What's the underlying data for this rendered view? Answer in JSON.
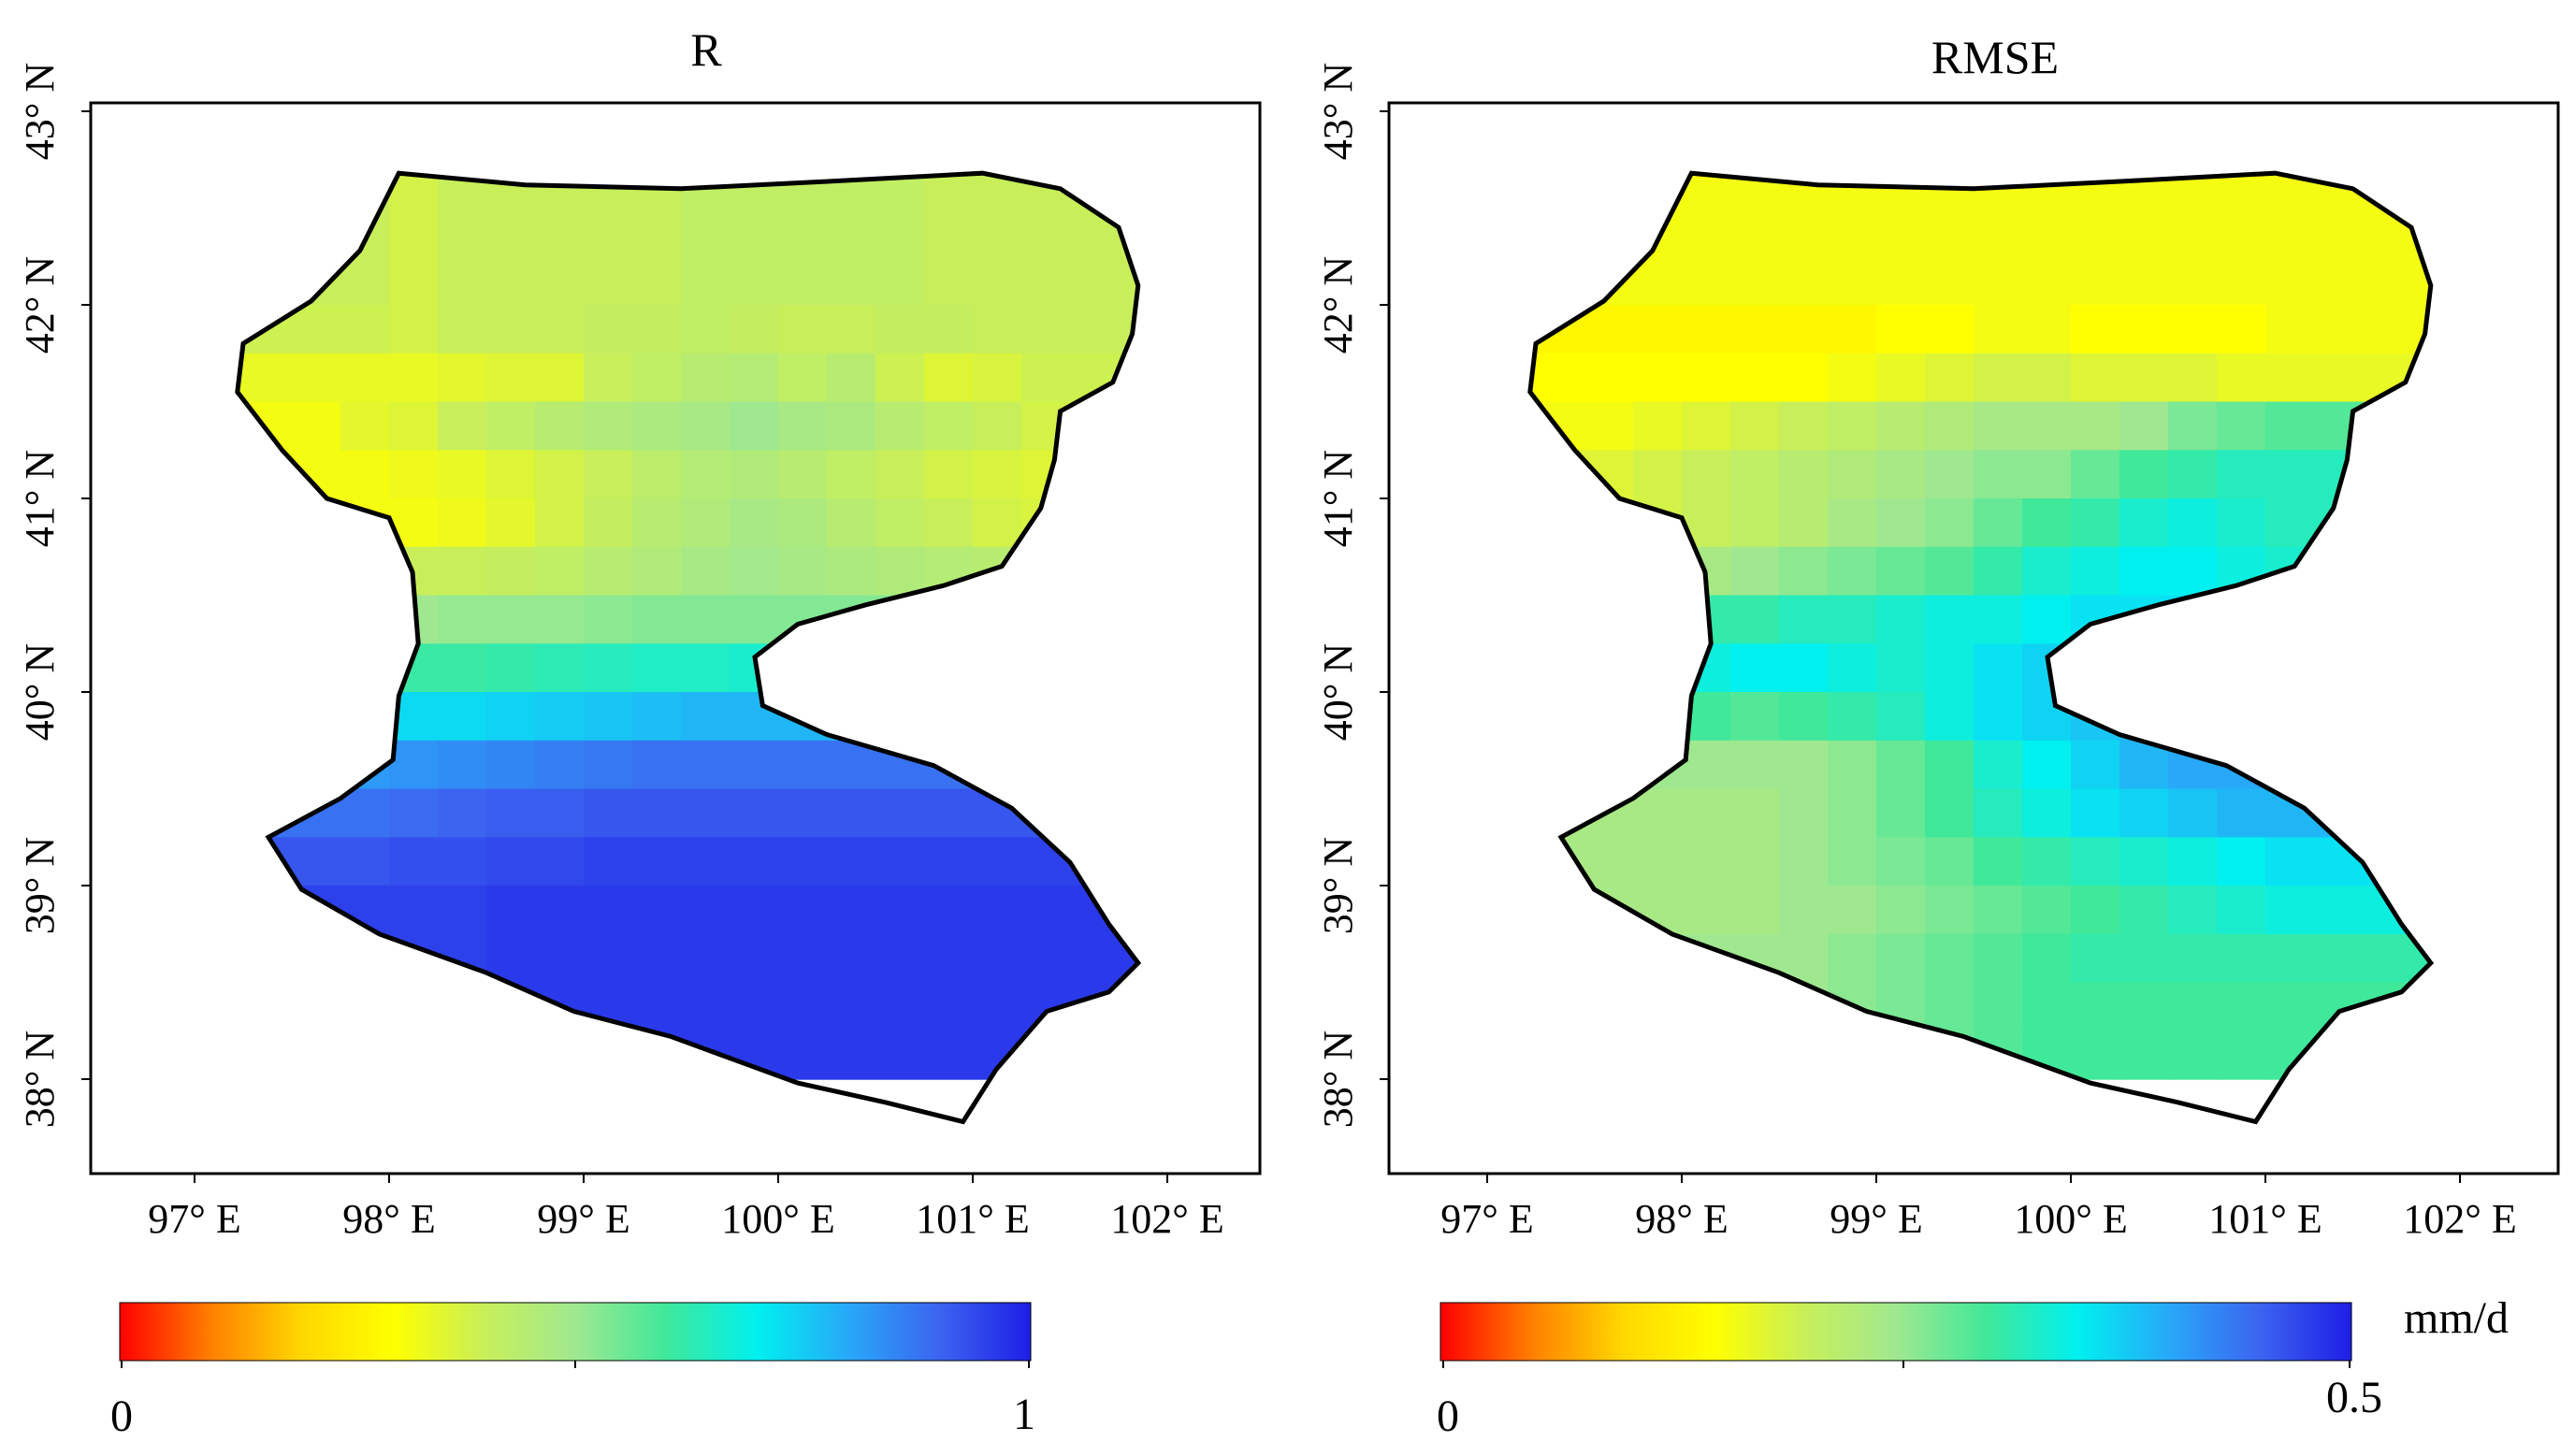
{
  "figure": {
    "panels": [
      {
        "title": "R",
        "lat_ticks": [
          "38° N",
          "39° N",
          "40° N",
          "41° N",
          "42° N",
          "43° N"
        ],
        "lon_ticks": [
          "97° E",
          "98° E",
          "99° E",
          "100° E",
          "101° E",
          "102° E"
        ],
        "colorbar": {
          "min_label": "0",
          "max_label": "1",
          "unit": ""
        }
      },
      {
        "title": "RMSE",
        "lat_ticks": [
          "38° N",
          "39° N",
          "40° N",
          "41° N",
          "42° N",
          "43° N"
        ],
        "lon_ticks": [
          "97° E",
          "98° E",
          "99° E",
          "100° E",
          "101° E",
          "102° E"
        ],
        "colorbar": {
          "min_label": "0",
          "max_label": "0.5",
          "unit": "mm/d"
        }
      }
    ],
    "colors": {
      "ramp": [
        "#ff0000",
        "#ff7f00",
        "#ffd700",
        "#ffff00",
        "#c8ef5a",
        "#a0e890",
        "#40e89a",
        "#00f0f0",
        "#28a8f8",
        "#3c64f0",
        "#1e1ee6"
      ],
      "outline": "#000000"
    }
  },
  "chart_data": {
    "type": "heatmap",
    "grid": {
      "lon_origin": 96.5,
      "lat_top": 42.75,
      "cell_deg": 0.25,
      "ncols": 22,
      "nrows": 19
    },
    "x_range": [
      96.5,
      102.5
    ],
    "y_range": [
      37.5,
      43.0
    ],
    "boundary_lonlat": [
      [
        98.05,
        42.68
      ],
      [
        98.7,
        42.62
      ],
      [
        99.5,
        42.6
      ],
      [
        100.3,
        42.64
      ],
      [
        101.05,
        42.68
      ],
      [
        101.45,
        42.6
      ],
      [
        101.75,
        42.4
      ],
      [
        101.85,
        42.1
      ],
      [
        101.82,
        41.85
      ],
      [
        101.72,
        41.6
      ],
      [
        101.45,
        41.45
      ],
      [
        101.42,
        41.2
      ],
      [
        101.35,
        40.95
      ],
      [
        101.15,
        40.65
      ],
      [
        100.85,
        40.55
      ],
      [
        100.45,
        40.45
      ],
      [
        100.1,
        40.35
      ],
      [
        99.88,
        40.18
      ],
      [
        99.92,
        39.93
      ],
      [
        100.25,
        39.78
      ],
      [
        100.8,
        39.62
      ],
      [
        101.2,
        39.4
      ],
      [
        101.5,
        39.12
      ],
      [
        101.7,
        38.8
      ],
      [
        101.85,
        38.6
      ],
      [
        101.7,
        38.45
      ],
      [
        101.38,
        38.35
      ],
      [
        101.12,
        38.05
      ],
      [
        100.95,
        37.78
      ],
      [
        100.55,
        37.88
      ],
      [
        100.1,
        37.98
      ],
      [
        99.45,
        38.22
      ],
      [
        98.95,
        38.35
      ],
      [
        98.5,
        38.55
      ],
      [
        97.95,
        38.75
      ],
      [
        97.55,
        38.98
      ],
      [
        97.38,
        39.25
      ],
      [
        97.75,
        39.45
      ],
      [
        98.02,
        39.65
      ],
      [
        98.05,
        39.98
      ],
      [
        98.15,
        40.25
      ],
      [
        98.12,
        40.62
      ],
      [
        98.0,
        40.9
      ],
      [
        97.68,
        41.0
      ],
      [
        97.45,
        41.25
      ],
      [
        97.22,
        41.55
      ],
      [
        97.25,
        41.8
      ],
      [
        97.6,
        42.02
      ],
      [
        97.85,
        42.28
      ]
    ],
    "panels": [
      {
        "name": "R",
        "range": [
          0,
          1
        ],
        "values": [
          [
            0.4,
            0.4,
            0.4,
            0.4,
            0.4,
            0.4,
            0.38,
            0.4,
            0.4,
            0.4,
            0.4,
            0.4,
            0.42,
            0.42,
            0.42,
            0.42,
            0.42,
            0.4,
            0.4,
            0.4,
            0.4,
            0.4
          ],
          [
            0.4,
            0.4,
            0.4,
            0.4,
            0.4,
            0.4,
            0.38,
            0.4,
            0.4,
            0.4,
            0.4,
            0.4,
            0.42,
            0.42,
            0.42,
            0.42,
            0.42,
            0.4,
            0.4,
            0.4,
            0.4,
            0.4
          ],
          [
            0.4,
            0.4,
            0.4,
            0.4,
            0.4,
            0.4,
            0.38,
            0.4,
            0.4,
            0.4,
            0.4,
            0.4,
            0.42,
            0.42,
            0.42,
            0.42,
            0.42,
            0.4,
            0.4,
            0.4,
            0.4,
            0.4
          ],
          [
            0.39,
            0.39,
            0.39,
            0.39,
            0.39,
            0.39,
            0.38,
            0.4,
            0.4,
            0.4,
            0.41,
            0.41,
            0.42,
            0.41,
            0.4,
            0.4,
            0.41,
            0.41,
            0.4,
            0.4,
            0.4,
            0.4
          ],
          [
            0.34,
            0.34,
            0.34,
            0.34,
            0.34,
            0.34,
            0.34,
            0.35,
            0.36,
            0.36,
            0.4,
            0.42,
            0.44,
            0.45,
            0.42,
            0.44,
            0.39,
            0.36,
            0.37,
            0.39,
            0.39,
            0.39
          ],
          [
            0.32,
            0.32,
            0.32,
            0.32,
            0.32,
            0.35,
            0.36,
            0.4,
            0.42,
            0.44,
            0.46,
            0.47,
            0.48,
            0.5,
            0.48,
            0.47,
            0.44,
            0.42,
            0.4,
            0.38,
            0.38,
            0.38
          ],
          [
            0.32,
            0.32,
            0.32,
            0.32,
            0.32,
            0.32,
            0.33,
            0.34,
            0.36,
            0.38,
            0.4,
            0.43,
            0.45,
            0.46,
            0.44,
            0.42,
            0.4,
            0.38,
            0.37,
            0.36,
            0.36,
            0.36
          ],
          [
            0.32,
            0.32,
            0.32,
            0.32,
            0.32,
            0.32,
            0.32,
            0.33,
            0.35,
            0.38,
            0.41,
            0.44,
            0.46,
            0.48,
            0.47,
            0.44,
            0.42,
            0.4,
            0.38,
            0.37,
            0.37,
            0.37
          ],
          [
            0.4,
            0.4,
            0.4,
            0.4,
            0.4,
            0.4,
            0.4,
            0.4,
            0.41,
            0.42,
            0.44,
            0.46,
            0.48,
            0.49,
            0.48,
            0.47,
            0.46,
            0.45,
            0.44,
            0.44,
            0.44,
            0.44
          ],
          [
            0.5,
            0.5,
            0.5,
            0.5,
            0.5,
            0.5,
            0.5,
            0.51,
            0.51,
            0.51,
            0.52,
            0.53,
            0.53,
            0.53,
            0.53,
            0.53,
            0.53,
            0.53,
            0.53,
            0.53,
            0.53,
            0.53
          ],
          [
            0.61,
            0.61,
            0.61,
            0.61,
            0.61,
            0.61,
            0.61,
            0.61,
            0.62,
            0.63,
            0.64,
            0.65,
            0.65,
            0.66,
            0.66,
            0.66,
            0.66,
            0.66,
            0.66,
            0.66,
            0.66,
            0.66
          ],
          [
            0.72,
            0.72,
            0.72,
            0.72,
            0.72,
            0.72,
            0.73,
            0.73,
            0.74,
            0.75,
            0.76,
            0.77,
            0.78,
            0.78,
            0.78,
            0.78,
            0.78,
            0.78,
            0.78,
            0.78,
            0.78,
            0.78
          ],
          [
            0.82,
            0.82,
            0.82,
            0.82,
            0.82,
            0.82,
            0.83,
            0.84,
            0.85,
            0.86,
            0.87,
            0.88,
            0.88,
            0.88,
            0.88,
            0.88,
            0.88,
            0.88,
            0.88,
            0.88,
            0.88,
            0.88
          ],
          [
            0.88,
            0.88,
            0.88,
            0.88,
            0.88,
            0.88,
            0.89,
            0.9,
            0.91,
            0.91,
            0.92,
            0.92,
            0.92,
            0.92,
            0.92,
            0.92,
            0.92,
            0.92,
            0.92,
            0.92,
            0.92,
            0.92
          ],
          [
            0.92,
            0.92,
            0.92,
            0.92,
            0.92,
            0.92,
            0.93,
            0.93,
            0.94,
            0.94,
            0.95,
            0.95,
            0.95,
            0.95,
            0.95,
            0.95,
            0.95,
            0.95,
            0.95,
            0.95,
            0.95,
            0.95
          ],
          [
            0.95,
            0.95,
            0.95,
            0.95,
            0.95,
            0.95,
            0.95,
            0.95,
            0.96,
            0.96,
            0.96,
            0.96,
            0.96,
            0.96,
            0.96,
            0.96,
            0.96,
            0.96,
            0.96,
            0.96,
            0.96,
            0.96
          ],
          [
            0.95,
            0.95,
            0.95,
            0.95,
            0.95,
            0.95,
            0.95,
            0.95,
            0.96,
            0.96,
            0.96,
            0.96,
            0.96,
            0.96,
            0.96,
            0.96,
            0.96,
            0.96,
            0.96,
            0.96,
            0.96,
            0.96
          ],
          [
            0.95,
            0.95,
            0.95,
            0.95,
            0.95,
            0.95,
            0.95,
            0.95,
            0.96,
            0.96,
            0.96,
            0.96,
            0.96,
            0.96,
            0.96,
            0.96,
            0.96,
            0.96,
            0.96,
            0.96,
            0.96,
            0.96
          ],
          [
            0.95,
            0.95,
            0.95,
            0.95,
            0.95,
            0.95,
            0.95,
            0.95,
            0.96,
            0.96,
            0.96,
            0.96,
            0.96,
            0.96,
            0.96,
            0.96,
            0.96,
            0.96,
            0.96,
            0.96,
            0.96,
            0.96
          ]
        ]
      },
      {
        "name": "RMSE",
        "range": [
          0,
          0.5
        ],
        "values": [
          [
            0.16,
            0.16,
            0.16,
            0.16,
            0.16,
            0.16,
            0.16,
            0.16,
            0.16,
            0.16,
            0.16,
            0.16,
            0.16,
            0.16,
            0.16,
            0.16,
            0.16,
            0.16,
            0.16,
            0.16,
            0.16,
            0.16
          ],
          [
            0.16,
            0.16,
            0.16,
            0.16,
            0.16,
            0.16,
            0.16,
            0.16,
            0.16,
            0.16,
            0.16,
            0.16,
            0.16,
            0.16,
            0.16,
            0.16,
            0.16,
            0.16,
            0.16,
            0.16,
            0.16,
            0.16
          ],
          [
            0.16,
            0.16,
            0.16,
            0.16,
            0.16,
            0.16,
            0.16,
            0.16,
            0.16,
            0.16,
            0.16,
            0.16,
            0.16,
            0.16,
            0.16,
            0.16,
            0.16,
            0.16,
            0.16,
            0.16,
            0.16,
            0.16
          ],
          [
            0.14,
            0.14,
            0.14,
            0.14,
            0.14,
            0.14,
            0.14,
            0.14,
            0.14,
            0.14,
            0.15,
            0.15,
            0.16,
            0.16,
            0.15,
            0.15,
            0.15,
            0.15,
            0.16,
            0.16,
            0.16,
            0.16
          ],
          [
            0.15,
            0.15,
            0.15,
            0.15,
            0.15,
            0.15,
            0.15,
            0.15,
            0.15,
            0.16,
            0.17,
            0.18,
            0.19,
            0.19,
            0.18,
            0.18,
            0.18,
            0.17,
            0.17,
            0.17,
            0.17,
            0.17
          ],
          [
            0.16,
            0.16,
            0.16,
            0.16,
            0.16,
            0.17,
            0.18,
            0.19,
            0.2,
            0.21,
            0.22,
            0.23,
            0.24,
            0.24,
            0.24,
            0.25,
            0.27,
            0.28,
            0.29,
            0.29,
            0.29,
            0.29
          ],
          [
            0.18,
            0.18,
            0.18,
            0.18,
            0.18,
            0.19,
            0.2,
            0.21,
            0.22,
            0.23,
            0.24,
            0.25,
            0.26,
            0.26,
            0.28,
            0.3,
            0.31,
            0.32,
            0.32,
            0.32,
            0.32,
            0.32
          ],
          [
            0.18,
            0.18,
            0.18,
            0.18,
            0.18,
            0.19,
            0.2,
            0.21,
            0.22,
            0.24,
            0.25,
            0.26,
            0.28,
            0.3,
            0.31,
            0.33,
            0.34,
            0.33,
            0.32,
            0.32,
            0.32,
            0.32
          ],
          [
            0.22,
            0.22,
            0.22,
            0.22,
            0.22,
            0.23,
            0.24,
            0.25,
            0.26,
            0.27,
            0.28,
            0.29,
            0.31,
            0.33,
            0.34,
            0.35,
            0.35,
            0.34,
            0.33,
            0.33,
            0.33,
            0.33
          ],
          [
            0.3,
            0.3,
            0.3,
            0.3,
            0.3,
            0.3,
            0.31,
            0.31,
            0.32,
            0.32,
            0.33,
            0.34,
            0.34,
            0.35,
            0.36,
            0.36,
            0.36,
            0.36,
            0.36,
            0.36,
            0.36,
            0.36
          ],
          [
            0.34,
            0.34,
            0.34,
            0.34,
            0.34,
            0.34,
            0.34,
            0.35,
            0.35,
            0.34,
            0.33,
            0.34,
            0.36,
            0.37,
            0.37,
            0.37,
            0.37,
            0.37,
            0.37,
            0.37,
            0.37,
            0.37
          ],
          [
            0.32,
            0.32,
            0.32,
            0.32,
            0.32,
            0.31,
            0.3,
            0.29,
            0.3,
            0.31,
            0.32,
            0.34,
            0.36,
            0.37,
            0.38,
            0.39,
            0.4,
            0.4,
            0.4,
            0.4,
            0.4,
            0.4
          ],
          [
            0.26,
            0.26,
            0.26,
            0.26,
            0.26,
            0.25,
            0.25,
            0.25,
            0.25,
            0.26,
            0.28,
            0.3,
            0.33,
            0.35,
            0.37,
            0.39,
            0.4,
            0.4,
            0.4,
            0.4,
            0.4,
            0.4
          ],
          [
            0.24,
            0.24,
            0.24,
            0.24,
            0.24,
            0.24,
            0.24,
            0.24,
            0.25,
            0.26,
            0.28,
            0.3,
            0.32,
            0.34,
            0.36,
            0.37,
            0.38,
            0.39,
            0.39,
            0.39,
            0.39,
            0.39
          ],
          [
            0.24,
            0.24,
            0.24,
            0.24,
            0.24,
            0.24,
            0.24,
            0.24,
            0.25,
            0.26,
            0.27,
            0.28,
            0.3,
            0.31,
            0.32,
            0.33,
            0.34,
            0.35,
            0.36,
            0.36,
            0.36,
            0.36
          ],
          [
            0.24,
            0.24,
            0.24,
            0.24,
            0.24,
            0.24,
            0.24,
            0.24,
            0.25,
            0.25,
            0.26,
            0.27,
            0.28,
            0.29,
            0.3,
            0.31,
            0.32,
            0.33,
            0.34,
            0.34,
            0.34,
            0.34
          ],
          [
            0.25,
            0.25,
            0.25,
            0.25,
            0.25,
            0.25,
            0.25,
            0.25,
            0.25,
            0.26,
            0.27,
            0.28,
            0.29,
            0.3,
            0.31,
            0.31,
            0.31,
            0.31,
            0.31,
            0.31,
            0.31,
            0.31
          ],
          [
            0.25,
            0.25,
            0.25,
            0.25,
            0.25,
            0.25,
            0.25,
            0.25,
            0.25,
            0.26,
            0.27,
            0.28,
            0.29,
            0.3,
            0.3,
            0.3,
            0.3,
            0.3,
            0.3,
            0.3,
            0.3,
            0.3
          ],
          [
            0.25,
            0.25,
            0.25,
            0.25,
            0.25,
            0.25,
            0.25,
            0.25,
            0.25,
            0.26,
            0.27,
            0.28,
            0.29,
            0.3,
            0.3,
            0.3,
            0.3,
            0.3,
            0.3,
            0.3,
            0.3,
            0.3
          ]
        ]
      }
    ]
  }
}
